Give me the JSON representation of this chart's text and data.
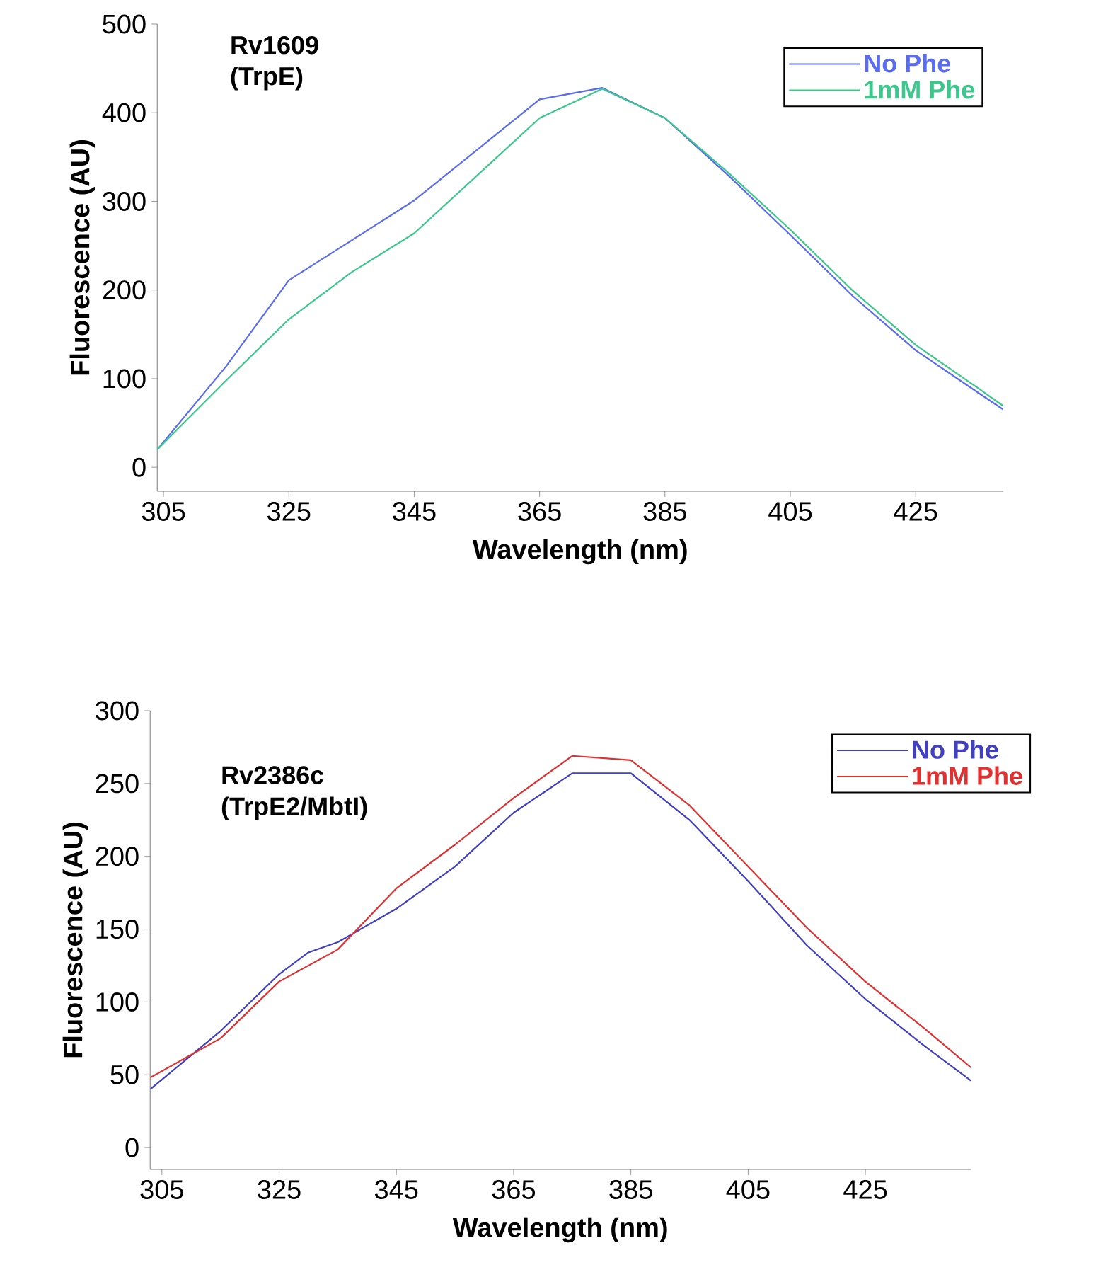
{
  "chart_data": [
    {
      "type": "line",
      "title": "Rv1609",
      "subtitle": "(TrpE)",
      "xlabel": "Wavelength (nm)",
      "ylabel": "Fluorescence (AU)",
      "xlim": [
        304,
        439
      ],
      "ylim": [
        -27,
        500
      ],
      "xticks": [
        305,
        325,
        345,
        365,
        385,
        405,
        425
      ],
      "yticks": [
        0,
        100,
        200,
        300,
        400,
        500
      ],
      "legend": "top right",
      "series": [
        {
          "name": "No Phe",
          "color": "#5a6cf0",
          "x": [
            304,
            315,
            325,
            335,
            345,
            355,
            365,
            375,
            385,
            395,
            405,
            415,
            425,
            435,
            439
          ],
          "values": [
            20,
            114,
            211,
            256,
            301,
            358,
            415,
            428,
            394,
            330,
            262,
            193,
            132,
            84,
            65
          ]
        },
        {
          "name": "1mM Phe",
          "color": "#3cc88c",
          "x": [
            304,
            315,
            325,
            335,
            345,
            355,
            365,
            375,
            385,
            395,
            405,
            415,
            425,
            435,
            439
          ],
          "values": [
            20,
            98,
            167,
            220,
            264,
            329,
            394,
            427,
            394,
            333,
            268,
            199,
            138,
            89,
            69
          ]
        }
      ]
    },
    {
      "type": "line",
      "title": "Rv2386c",
      "subtitle": "(TrpE2/MbtI)",
      "xlabel": "Wavelength (nm)",
      "ylabel": "Fluorescence (AU)",
      "xlim": [
        303,
        443
      ],
      "ylim": [
        -15,
        300
      ],
      "xticks": [
        305,
        325,
        345,
        365,
        385,
        405,
        425
      ],
      "yticks": [
        0,
        50,
        100,
        150,
        200,
        250,
        300
      ],
      "legend": "top right",
      "series": [
        {
          "name": "No Phe",
          "color": "#4040c0",
          "x": [
            303,
            315,
            325,
            330,
            335,
            345,
            355,
            365,
            375,
            385,
            395,
            405,
            415,
            425,
            435,
            443
          ],
          "values": [
            40,
            80,
            119,
            134,
            141,
            164,
            193,
            230,
            257,
            257,
            225,
            183,
            139,
            102,
            70,
            46
          ]
        },
        {
          "name": "1mM Phe",
          "color": "#e03030",
          "x": [
            303,
            315,
            325,
            335,
            345,
            355,
            365,
            375,
            385,
            395,
            405,
            415,
            425,
            435,
            443
          ],
          "values": [
            48,
            75,
            114,
            136,
            178,
            208,
            240,
            269,
            266,
            235,
            193,
            151,
            114,
            82,
            55
          ]
        }
      ]
    }
  ]
}
